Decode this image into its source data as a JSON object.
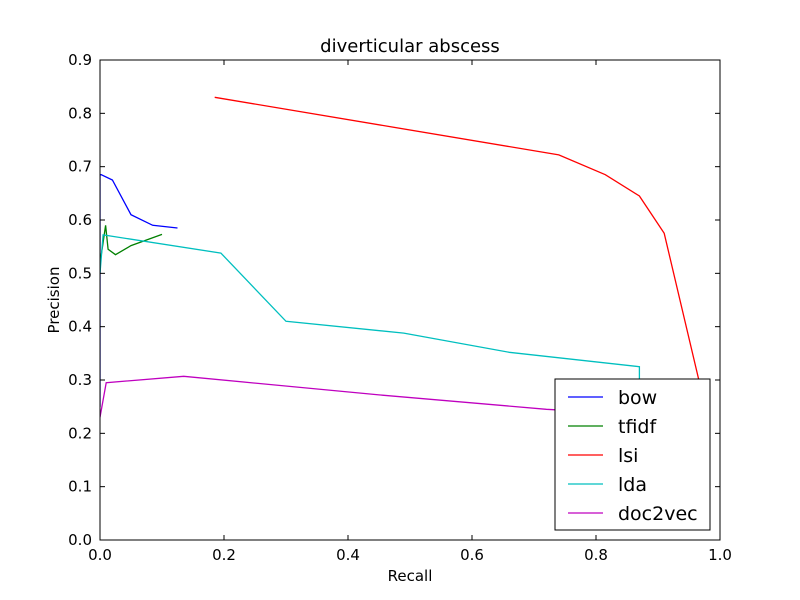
{
  "chart_data": {
    "type": "line",
    "title": "diverticular abscess",
    "xlabel": "Recall",
    "ylabel": "Precision",
    "xlim": [
      0.0,
      1.0
    ],
    "ylim": [
      0.0,
      0.9
    ],
    "xticks": [
      0.0,
      0.2,
      0.4,
      0.6,
      0.8,
      1.0
    ],
    "yticks": [
      0.0,
      0.1,
      0.2,
      0.3,
      0.4,
      0.5,
      0.6,
      0.7,
      0.8,
      0.9
    ],
    "xtick_labels": [
      "0.0",
      "0.2",
      "0.4",
      "0.6",
      "0.8",
      "1.0"
    ],
    "ytick_labels": [
      "0.0",
      "0.1",
      "0.2",
      "0.3",
      "0.4",
      "0.5",
      "0.6",
      "0.7",
      "0.8",
      "0.9"
    ],
    "grid": false,
    "legend_position": "lower-right",
    "series": [
      {
        "name": "bow",
        "color": "#0000ff",
        "x": [
          0.0,
          0.0,
          0.002,
          0.02,
          0.05,
          0.085,
          0.125
        ],
        "y": [
          0.25,
          0.685,
          0.685,
          0.675,
          0.61,
          0.59,
          0.585
        ]
      },
      {
        "name": "tfidf",
        "color": "#008000",
        "x": [
          0.0,
          0.004,
          0.009,
          0.013,
          0.025,
          0.05,
          0.1
        ],
        "y": [
          0.52,
          0.55,
          0.59,
          0.545,
          0.535,
          0.552,
          0.573
        ]
      },
      {
        "name": "lsi",
        "color": "#ff0000",
        "x": [
          0.185,
          0.74,
          0.815,
          0.87,
          0.91,
          0.975
        ],
        "y": [
          0.83,
          0.722,
          0.685,
          0.645,
          0.575,
          0.255
        ]
      },
      {
        "name": "lda",
        "color": "#00bfbf",
        "x": [
          0.0,
          0.005,
          0.195,
          0.3,
          0.49,
          0.66,
          0.87,
          0.87
        ],
        "y": [
          0.5,
          0.572,
          0.538,
          0.41,
          0.388,
          0.352,
          0.325,
          0.3
        ]
      },
      {
        "name": "doc2vec",
        "color": "#bf00bf",
        "x": [
          0.0,
          0.01,
          0.135,
          0.45,
          0.72,
          0.8
        ],
        "y": [
          0.23,
          0.295,
          0.307,
          0.272,
          0.245,
          0.24
        ]
      }
    ]
  }
}
